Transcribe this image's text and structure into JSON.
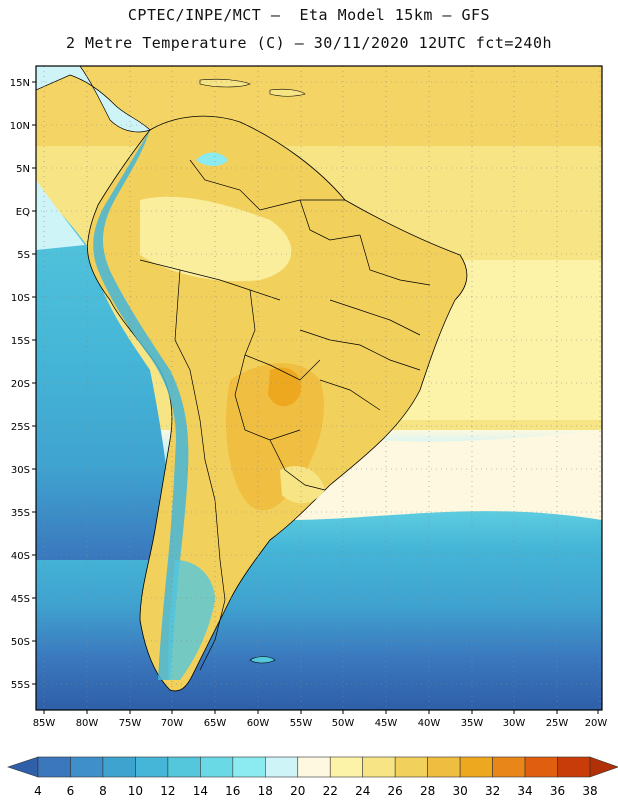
{
  "header": {
    "line1": "CPTEC/INPE/MCT –  Eta Model 15km – GFS",
    "line2": "2 Metre Temperature (C) – 30/11/2020 12UTC fct=240h"
  },
  "map": {
    "lat_labels": [
      "15N",
      "10N",
      "5N",
      "EQ",
      "5S",
      "10S",
      "15S",
      "20S",
      "25S",
      "30S",
      "35S",
      "40S",
      "45S",
      "50S",
      "55S"
    ],
    "lon_labels": [
      "85W",
      "80W",
      "75W",
      "70W",
      "65W",
      "60W",
      "55W",
      "50W",
      "45W",
      "40W",
      "35W",
      "30W",
      "25W",
      "20W"
    ]
  },
  "colorbar": {
    "ticks": [
      "4",
      "6",
      "8",
      "10",
      "12",
      "14",
      "16",
      "18",
      "20",
      "22",
      "24",
      "26",
      "28",
      "30",
      "32",
      "34",
      "36",
      "38"
    ],
    "colors": [
      "#2e5fa8",
      "#3a77bd",
      "#3f8fcb",
      "#3fa3d0",
      "#45b6d7",
      "#54c7dd",
      "#6ad9e6",
      "#8cebf1",
      "#cff4f8",
      "#fdf8df",
      "#fcf3a8",
      "#f7e585",
      "#f2d05c",
      "#efbd3f",
      "#eda81f",
      "#e8861a",
      "#df5e10",
      "#c83c0a",
      "#b03008"
    ]
  }
}
